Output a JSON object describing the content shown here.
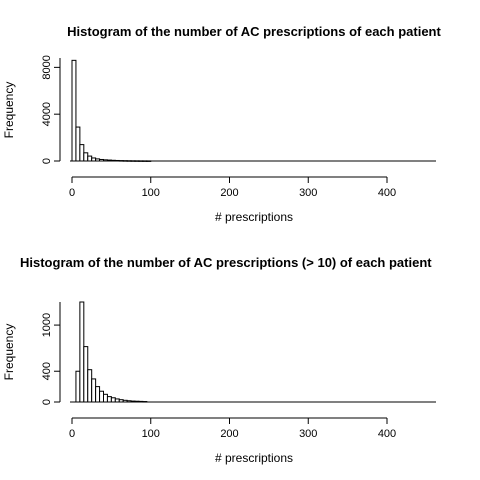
{
  "chart_data": [
    {
      "type": "bar",
      "title": "Histogram of the number of AC prescriptions of each patient",
      "xlabel": "# prescriptions",
      "ylabel": "Frequency",
      "xlim": [
        0,
        460
      ],
      "ylim": [
        0,
        8800
      ],
      "xticks": [
        0,
        100,
        200,
        300,
        400
      ],
      "yticks": [
        0,
        4000,
        8000
      ],
      "bin_width": 5,
      "bins_start": 0,
      "values": [
        8600,
        2900,
        1400,
        700,
        420,
        260,
        180,
        130,
        100,
        80,
        60,
        45,
        35,
        28,
        22,
        18,
        15,
        12,
        10,
        8
      ]
    },
    {
      "type": "bar",
      "title": "Histogram of the number of AC prescriptions (> 10) of each patient",
      "xlabel": "# prescriptions",
      "ylabel": "Frequency",
      "xlim": [
        0,
        460
      ],
      "ylim": [
        0,
        1300
      ],
      "xticks": [
        0,
        100,
        200,
        300,
        400
      ],
      "yticks": [
        0,
        400,
        1000
      ],
      "bin_width": 5,
      "bins_start": 5,
      "values": [
        400,
        1300,
        720,
        420,
        300,
        200,
        140,
        100,
        70,
        55,
        40,
        30,
        22,
        16,
        12,
        10,
        8,
        6
      ]
    }
  ]
}
